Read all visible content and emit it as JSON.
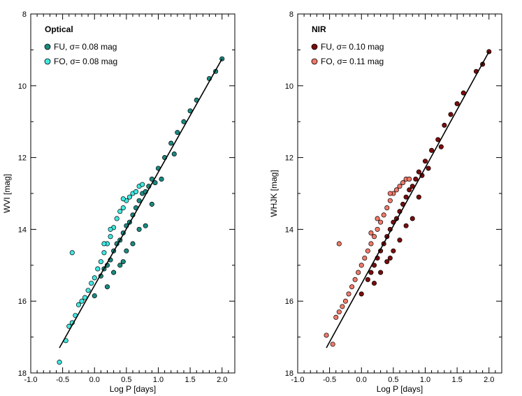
{
  "chart_data": [
    {
      "type": "scatter",
      "panel_label": "Optical",
      "xlabel": "Log P [days]",
      "ylabel": "WVI [mag]",
      "xlim": [
        -1.0,
        2.2
      ],
      "ylim": [
        18,
        8
      ],
      "y_inverted": true,
      "xticks": [
        -1.0,
        -0.5,
        0.0,
        0.5,
        1.0,
        1.5,
        2.0
      ],
      "xtick_labels": [
        "-1.0",
        "-0.5",
        "0.0",
        "0.5",
        "1.0",
        "1.5",
        "2.0"
      ],
      "yticks": [
        8,
        10,
        12,
        14,
        16,
        18
      ],
      "ytick_labels": [
        "8",
        "10",
        "12",
        "14",
        "16",
        "18"
      ],
      "legend_position": "top-left",
      "series": [
        {
          "name": "FU",
          "sigma_text": "σ= 0.08 mag",
          "color": "#1a8a80",
          "x": [
            0.0,
            0.1,
            0.15,
            0.2,
            0.25,
            0.3,
            0.35,
            0.4,
            0.45,
            0.5,
            0.55,
            0.6,
            0.65,
            0.7,
            0.75,
            0.8,
            0.85,
            0.9,
            1.0,
            1.1,
            1.2,
            1.3,
            1.4,
            1.5,
            1.6,
            1.8,
            1.9,
            2.0,
            0.3,
            0.5,
            0.7,
            0.9,
            0.6,
            0.4,
            0.2,
            0.8,
            1.05,
            1.25,
            0.95,
            0.45
          ],
          "y": [
            15.85,
            15.3,
            15.1,
            15.0,
            14.85,
            14.6,
            14.4,
            14.3,
            14.1,
            13.9,
            13.8,
            13.6,
            13.4,
            13.2,
            13.0,
            12.95,
            12.8,
            12.6,
            12.3,
            12.0,
            11.6,
            11.3,
            11.0,
            10.7,
            10.4,
            9.8,
            9.6,
            9.25,
            15.2,
            14.6,
            14.0,
            13.3,
            14.4,
            15.0,
            15.6,
            13.9,
            12.6,
            11.9,
            12.7,
            14.9
          ]
        },
        {
          "name": "FO",
          "sigma_text": "σ= 0.08 mag",
          "color": "#40e8e0",
          "x": [
            -0.55,
            -0.45,
            -0.4,
            -0.35,
            -0.3,
            -0.25,
            -0.2,
            -0.15,
            -0.1,
            -0.05,
            0.0,
            0.05,
            0.1,
            0.15,
            0.2,
            0.25,
            0.3,
            0.35,
            0.4,
            0.45,
            0.5,
            0.55,
            0.6,
            0.65,
            0.7,
            0.75,
            -0.35,
            0.25,
            0.45,
            0.15
          ],
          "y": [
            17.7,
            17.1,
            16.7,
            16.6,
            16.4,
            16.1,
            16.0,
            15.9,
            15.7,
            15.5,
            15.35,
            15.1,
            14.9,
            14.65,
            14.4,
            14.2,
            13.95,
            13.7,
            13.5,
            13.4,
            13.2,
            13.1,
            13.0,
            12.95,
            12.8,
            12.75,
            14.65,
            14.0,
            13.15,
            14.4
          ]
        }
      ],
      "fit_line": {
        "x": [
          -0.55,
          2.0
        ],
        "y": [
          17.3,
          9.25
        ]
      }
    },
    {
      "type": "scatter",
      "panel_label": "NIR",
      "xlabel": "Log P [days]",
      "ylabel": "WHJK [mag]",
      "xlim": [
        -1.0,
        2.2
      ],
      "ylim": [
        18,
        8
      ],
      "y_inverted": true,
      "xticks": [
        -1.0,
        -0.5,
        0.0,
        0.5,
        1.0,
        1.5,
        2.0
      ],
      "xtick_labels": [
        "-1.0",
        "-0.5",
        "0.0",
        "0.5",
        "1.0",
        "1.5",
        "2.0"
      ],
      "yticks": [
        8,
        10,
        12,
        14,
        16,
        18
      ],
      "ytick_labels": [
        "8",
        "10",
        "12",
        "14",
        "16",
        "18"
      ],
      "legend_position": "top-left",
      "series": [
        {
          "name": "FU",
          "sigma_text": "σ= 0.10 mag",
          "color": "#7a0c0c",
          "x": [
            0.0,
            0.1,
            0.15,
            0.2,
            0.25,
            0.3,
            0.35,
            0.4,
            0.45,
            0.5,
            0.55,
            0.6,
            0.65,
            0.7,
            0.75,
            0.8,
            0.85,
            0.9,
            1.0,
            1.1,
            1.2,
            1.3,
            1.4,
            1.5,
            1.6,
            1.8,
            1.9,
            2.0,
            0.3,
            0.5,
            0.7,
            0.9,
            0.6,
            0.4,
            0.2,
            0.8,
            1.05,
            1.25,
            0.95,
            0.45
          ],
          "y": [
            15.8,
            15.4,
            15.2,
            15.0,
            14.8,
            14.6,
            14.4,
            14.2,
            14.0,
            13.8,
            13.7,
            13.5,
            13.3,
            13.1,
            12.9,
            12.8,
            12.6,
            12.4,
            12.1,
            11.8,
            11.5,
            11.1,
            10.8,
            10.5,
            10.2,
            9.6,
            9.4,
            9.05,
            15.2,
            14.6,
            13.9,
            13.1,
            14.3,
            14.9,
            15.5,
            13.7,
            12.3,
            11.7,
            12.5,
            14.8
          ]
        },
        {
          "name": "FO",
          "sigma_text": "σ= 0.11 mag",
          "color": "#f07a6a",
          "x": [
            -0.55,
            -0.45,
            -0.4,
            -0.35,
            -0.3,
            -0.25,
            -0.2,
            -0.15,
            -0.1,
            -0.05,
            0.0,
            0.05,
            0.1,
            0.15,
            0.2,
            0.25,
            0.3,
            0.35,
            0.4,
            0.45,
            0.5,
            0.55,
            0.6,
            0.65,
            0.7,
            0.75,
            -0.35,
            0.25,
            0.45,
            0.15
          ],
          "y": [
            16.95,
            17.2,
            16.45,
            16.3,
            16.15,
            16.0,
            15.8,
            15.6,
            15.4,
            15.2,
            15.0,
            14.8,
            14.6,
            14.4,
            14.2,
            14.0,
            13.8,
            13.6,
            13.4,
            13.2,
            13.0,
            12.9,
            12.8,
            12.7,
            12.6,
            12.6,
            14.4,
            13.7,
            13.0,
            14.1
          ]
        }
      ],
      "fit_line": {
        "x": [
          -0.55,
          2.0
        ],
        "y": [
          17.3,
          9.05
        ]
      }
    }
  ]
}
